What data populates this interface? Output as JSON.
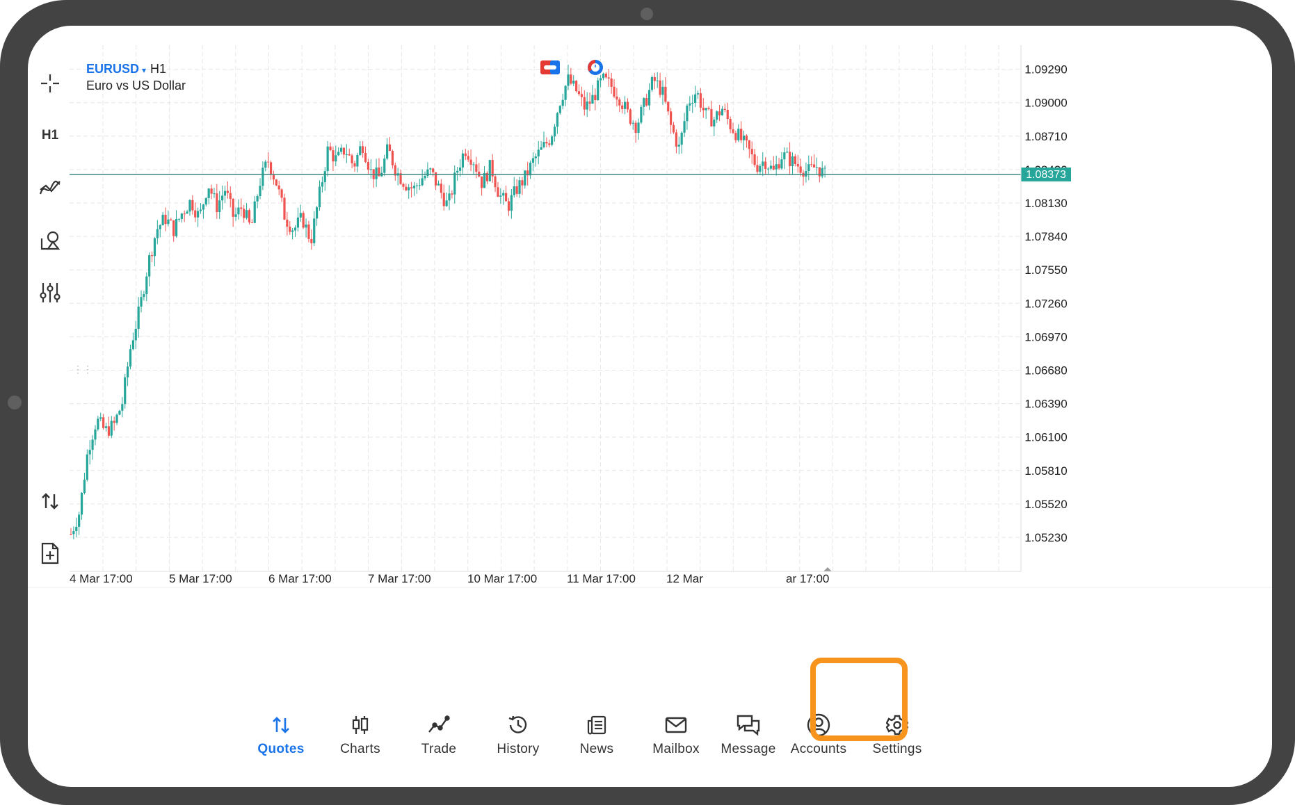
{
  "chart_header": {
    "symbol": "EURUSD",
    "dropdown_glyph": "▾",
    "timeframe": "H1",
    "description": "Euro vs US Dollar"
  },
  "toolbar": [
    {
      "name": "crosshair-icon"
    },
    {
      "name": "timeframe-button",
      "label": "H1"
    },
    {
      "name": "indicators-icon"
    },
    {
      "name": "objects-icon"
    },
    {
      "name": "settings-sliders-icon"
    },
    {
      "name": "trade-arrows-icon"
    },
    {
      "name": "new-order-icon"
    }
  ],
  "chart_data": {
    "type": "candlestick",
    "symbol": "EURUSD",
    "timeframe": "H1",
    "y_ticks": [
      "1.09290",
      "1.09000",
      "1.08710",
      "1.08420",
      "1.08130",
      "1.07840",
      "1.07550",
      "1.07260",
      "1.06970",
      "1.06680",
      "1.06390",
      "1.06100",
      "1.05810",
      "1.05520",
      "1.05230"
    ],
    "ylim": [
      1.0506,
      1.0967
    ],
    "x_ticks": [
      "4 Mar 17:00",
      "5 Mar 17:00",
      "6 Mar 17:00",
      "7 Mar 17:00",
      "10 Mar 17:00",
      "11 Mar 17:00",
      "12 Mar",
      "ar 17:00"
    ],
    "current_price": "1.08373",
    "colors": {
      "up": "#26a69a",
      "down": "#ef5350",
      "price_line": "#3d8c80"
    },
    "close_path": [
      1.0526,
      1.0545,
      1.06,
      1.0625,
      1.0615,
      1.062,
      1.064,
      1.069,
      1.072,
      1.076,
      1.079,
      1.08,
      1.079,
      1.0805,
      1.0815,
      1.08,
      1.083,
      1.081,
      1.0825,
      1.08,
      1.081,
      1.079,
      1.083,
      1.085,
      1.083,
      1.08,
      1.079,
      1.08,
      1.078,
      1.082,
      1.086,
      1.085,
      1.086,
      1.0845,
      1.0865,
      1.084,
      1.0835,
      1.086,
      1.084,
      1.083,
      1.0825,
      1.0835,
      1.084,
      1.0825,
      1.081,
      1.084,
      1.086,
      1.085,
      1.083,
      1.0845,
      1.082,
      1.081,
      1.0825,
      1.0835,
      1.085,
      1.086,
      1.087,
      1.09,
      1.092,
      1.091,
      1.0895,
      1.0905,
      1.092,
      1.0915,
      1.0905,
      1.089,
      1.088,
      1.09,
      1.092,
      1.091,
      1.088,
      1.086,
      1.09,
      1.091,
      1.089,
      1.0885,
      1.0895,
      1.088,
      1.087,
      1.086,
      1.0845,
      1.085,
      1.084,
      1.0855,
      1.085,
      1.0845,
      1.084,
      1.0845,
      1.0837
    ]
  },
  "markers": [
    {
      "name": "event-flag-icon",
      "color": "#e53935"
    },
    {
      "name": "clock-event-icon",
      "color": "#1a73e8"
    }
  ],
  "nav": {
    "items": [
      {
        "label": "Quotes",
        "icon": "quotes-arrows-icon",
        "active": true
      },
      {
        "label": "Charts",
        "icon": "charts-candles-icon",
        "active": false
      },
      {
        "label": "Trade",
        "icon": "trade-line-icon",
        "active": false
      },
      {
        "label": "History",
        "icon": "history-clock-icon",
        "active": false
      },
      {
        "label": "News",
        "icon": "news-icon",
        "active": false
      },
      {
        "label": "Mailbox",
        "icon": "mailbox-envelope-icon",
        "active": false
      },
      {
        "label": "Message",
        "icon": "message-bubbles-icon",
        "active": false
      },
      {
        "label": "Accounts",
        "icon": "accounts-user-icon",
        "active": false
      },
      {
        "label": "Settings",
        "icon": "settings-gear-icon",
        "active": false
      }
    ],
    "highlight_color": "#f7941d",
    "active_color": "#1a73e8"
  }
}
